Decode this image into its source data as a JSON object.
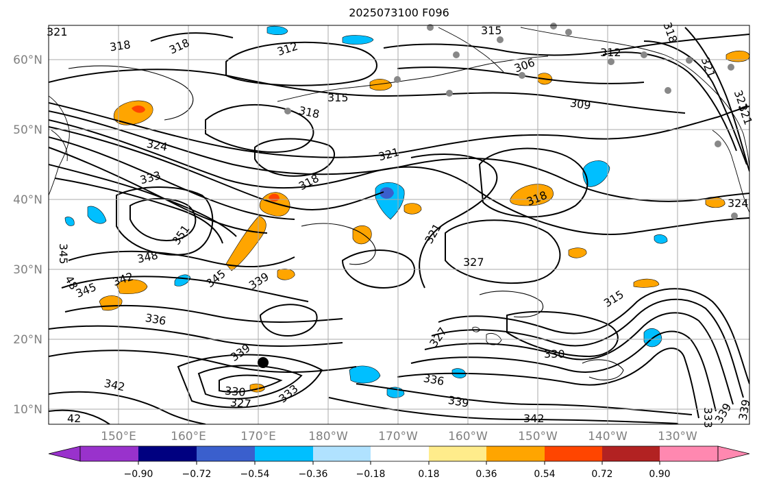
{
  "title": "2025073100 F096",
  "lat_labels": [
    "60°N",
    "50°N",
    "40°N",
    "30°N",
    "20°N",
    "10°N"
  ],
  "lon_labels": [
    "150°E",
    "160°E",
    "170°E",
    "180°W",
    "170°W",
    "160°W",
    "150°W",
    "140°W",
    "130°W"
  ],
  "colorbar": {
    "tick_labels": [
      "−0.90",
      "−0.72",
      "−0.54",
      "−0.36",
      "−0.18",
      "0.18",
      "0.36",
      "0.54",
      "0.72",
      "0.90"
    ],
    "colors": [
      "#9932cc",
      "#000080",
      "#3a5fcd",
      "#00bfff",
      "#b0e2ff",
      "#ffffff",
      "#ffec8b",
      "#ffa500",
      "#ff4500",
      "#b22222",
      "#ff88b0"
    ]
  },
  "contour_labels": [
    "321",
    "318",
    "318",
    "312",
    "315",
    "312",
    "306",
    "318",
    "321",
    "315",
    "309",
    "318",
    "321",
    "324",
    "333",
    "318",
    "321",
    "318",
    "324",
    "351",
    "348",
    "345",
    "342",
    "345",
    "321",
    "327",
    "339",
    "345",
    "336",
    "315",
    "339",
    "327",
    "330",
    "330",
    "327",
    "333",
    "336",
    "339",
    "342",
    "342",
    "42",
    "333",
    "339",
    "339",
    "321",
    "48"
  ],
  "colors": {
    "contour": "#000000",
    "grid": "#a8a8a8",
    "axis_text": "#808080",
    "station_marker": "#888888"
  }
}
